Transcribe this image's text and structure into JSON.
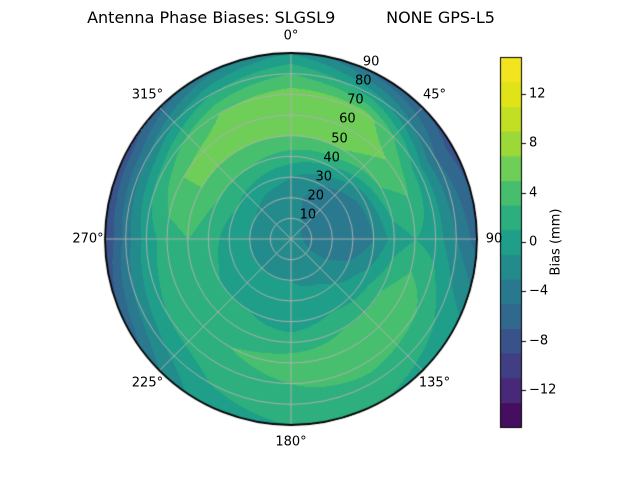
{
  "chart_data": {
    "type": "heatmap",
    "projection": "polar",
    "title": "Antenna Phase Biases: SLGSL9          NONE GPS-L5",
    "background": "#ffffff",
    "grid_color": "#b0b0b0",
    "outline_color": "#000000",
    "angle_ticks": [
      {
        "deg": 0,
        "label": "0°"
      },
      {
        "deg": 45,
        "label": "45°"
      },
      {
        "deg": 90,
        "label": "90"
      },
      {
        "deg": 135,
        "label": "135°"
      },
      {
        "deg": 180,
        "label": "180°"
      },
      {
        "deg": 225,
        "label": "225°"
      },
      {
        "deg": 270,
        "label": "270°"
      },
      {
        "deg": 315,
        "label": "315°"
      }
    ],
    "radial_ticks": [
      10,
      20,
      30,
      40,
      50,
      60,
      70,
      80,
      90
    ],
    "radial_label_azimuth_deg": 22.5,
    "radial_max": 90,
    "colorbar": {
      "label": "Bias (mm)",
      "ticks": [
        {
          "value": 12,
          "label": "12"
        },
        {
          "value": 8,
          "label": "8"
        },
        {
          "value": 4,
          "label": "4"
        },
        {
          "value": 0,
          "label": "0"
        },
        {
          "value": -4,
          "label": "−4"
        },
        {
          "value": -8,
          "label": "−8"
        },
        {
          "value": -12,
          "label": "−12"
        }
      ],
      "vmin": -15,
      "vmax": 15,
      "level_step": 2
    },
    "colormap": {
      "name": "viridis",
      "stops": [
        "#440154",
        "#482878",
        "#3e4989",
        "#31688e",
        "#26828e",
        "#1f9e89",
        "#35b779",
        "#6ece58",
        "#b5de2b",
        "#dfe318",
        "#fde725"
      ]
    },
    "azimuth_deg": [
      0,
      30,
      60,
      90,
      120,
      150,
      180,
      210,
      240,
      270,
      300,
      330
    ],
    "zenith_deg": [
      0,
      10,
      20,
      30,
      40,
      50,
      60,
      70,
      80,
      90
    ],
    "bias_mm": [
      [
        -2,
        -2,
        -2,
        -1,
        2,
        5,
        7,
        6,
        3,
        -1
      ],
      [
        -2,
        -3,
        -4,
        -3,
        1,
        5,
        7,
        6,
        0,
        -6
      ],
      [
        -2,
        -4,
        -5,
        -5,
        -2,
        3,
        4,
        0,
        -5,
        -8
      ],
      [
        -2,
        -4,
        -5,
        -5,
        -3,
        0,
        1,
        0,
        -3,
        -6
      ],
      [
        -2,
        -3,
        -3,
        -2,
        0,
        3,
        5,
        3,
        1,
        0
      ],
      [
        -2,
        -2,
        -2,
        0,
        1,
        3,
        4,
        4,
        2,
        1
      ],
      [
        -2,
        -2,
        -1,
        0,
        0,
        2,
        4,
        3,
        2,
        1
      ],
      [
        -2,
        -2,
        -1,
        0,
        1,
        2,
        3,
        2,
        1,
        0
      ],
      [
        -2,
        -2,
        -1,
        0,
        1,
        2,
        2,
        1,
        -2,
        -6
      ],
      [
        -2,
        -2,
        -1,
        0,
        2,
        3,
        2,
        0,
        -4,
        -9
      ],
      [
        -2,
        -2,
        -1,
        1,
        3,
        5,
        5,
        2,
        -3,
        -8
      ],
      [
        -2,
        -2,
        -2,
        0,
        3,
        5,
        6,
        5,
        1,
        -4
      ]
    ]
  }
}
